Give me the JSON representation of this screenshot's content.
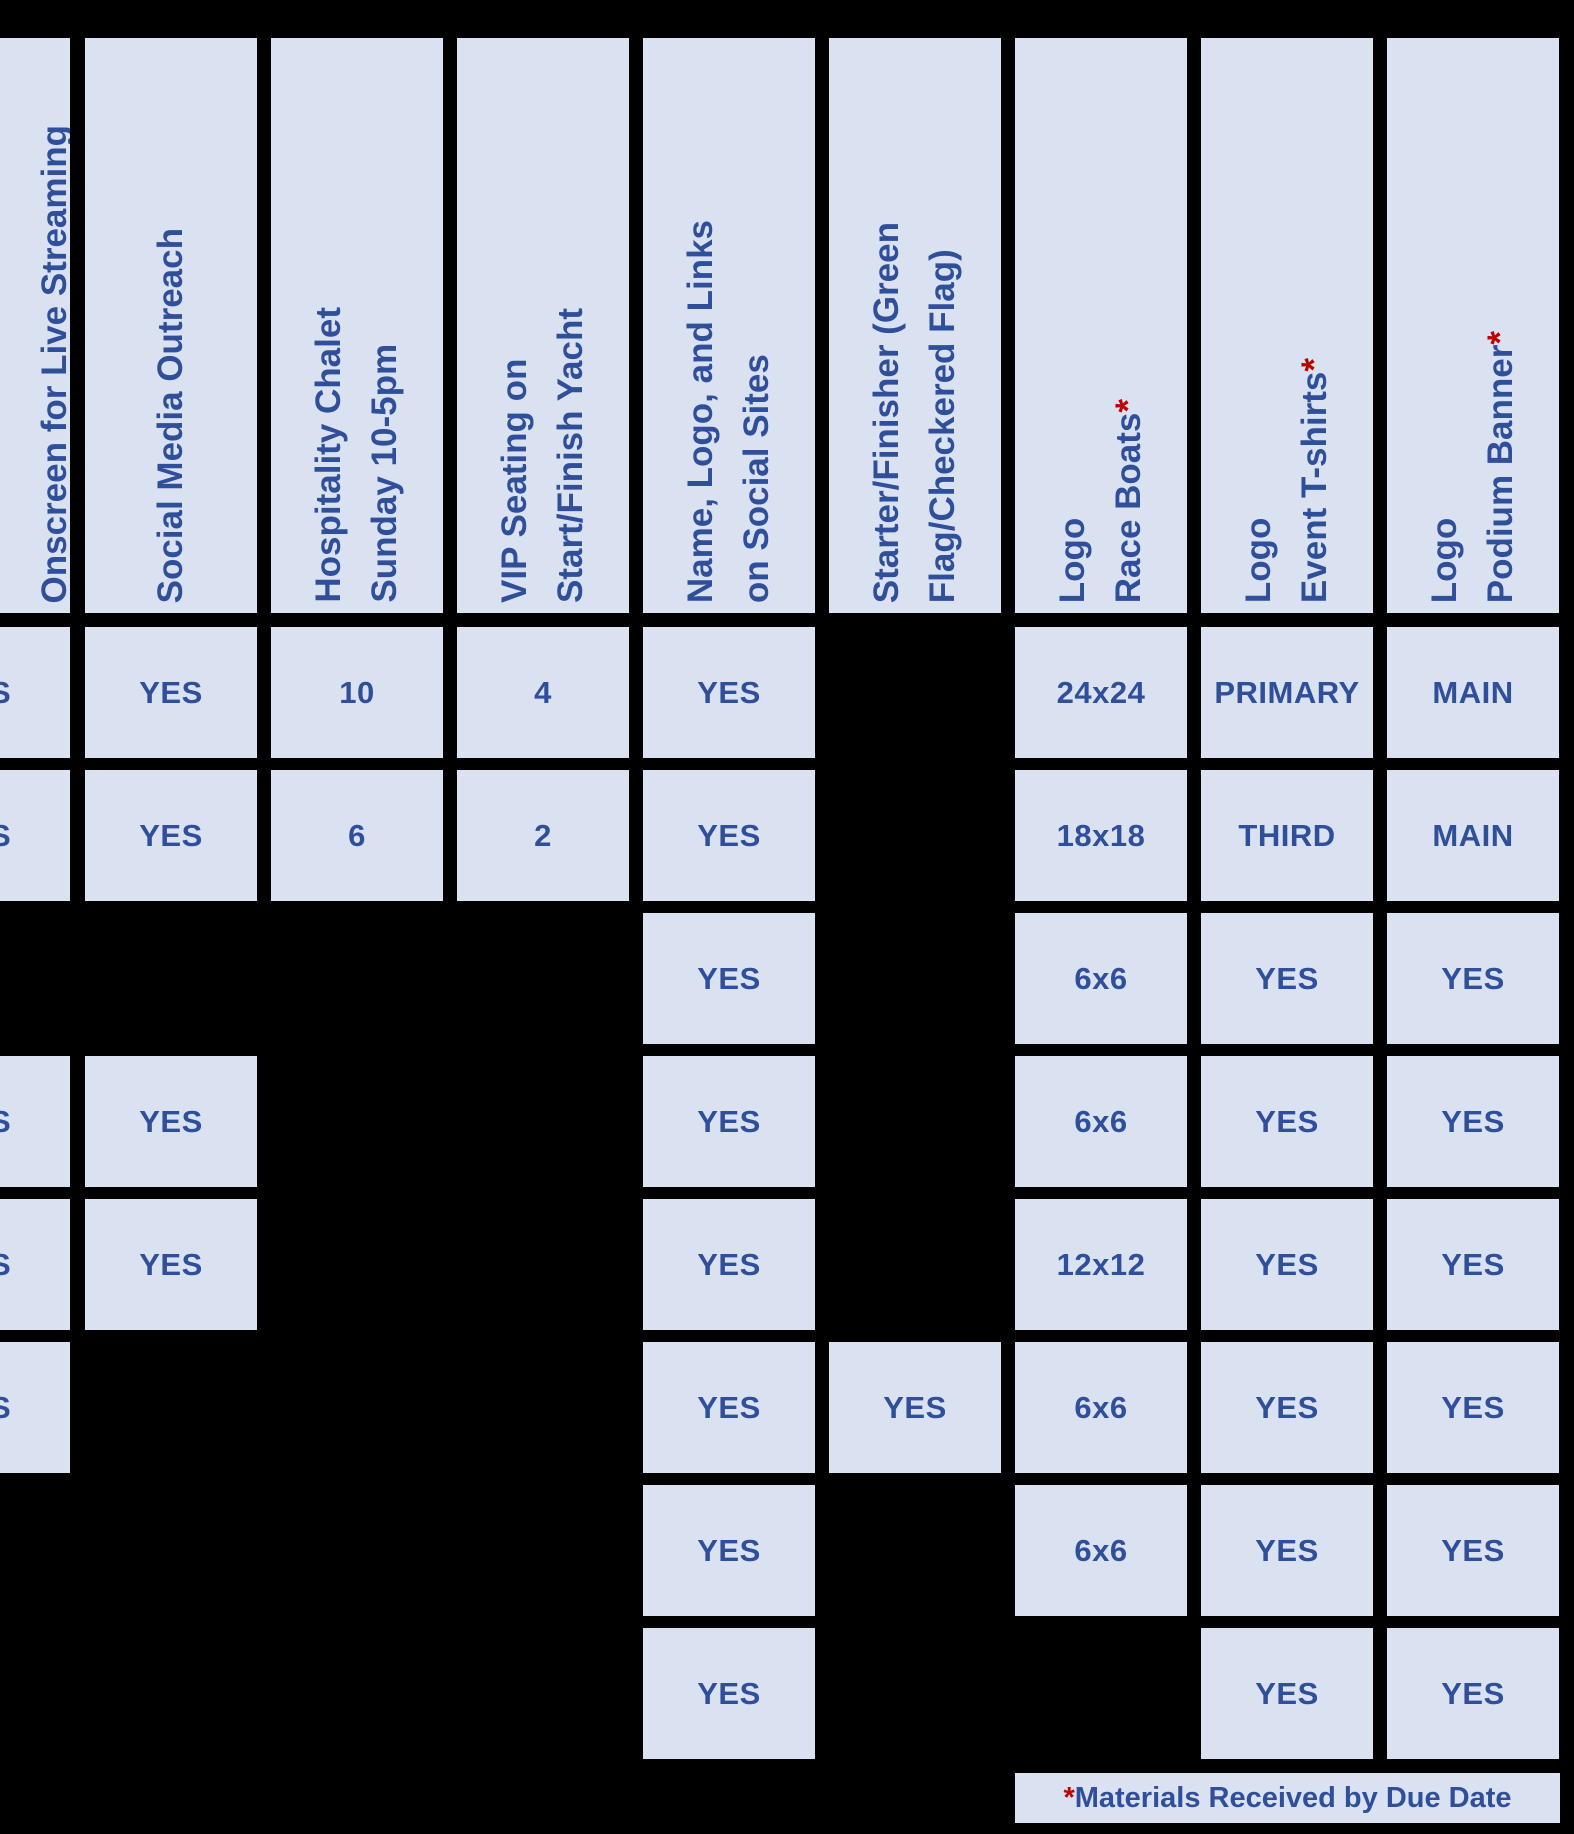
{
  "colors": {
    "background": "#000000",
    "cell_fill": "#dae1f1",
    "text": "#2f4f9a",
    "asterisk": "#c00000"
  },
  "headers": [
    {
      "lines": [
        "Onscreen for Live Streaming"
      ],
      "asterisk": false
    },
    {
      "lines": [
        "Social Media Outreach"
      ],
      "asterisk": false
    },
    {
      "lines": [
        "Hospitality Chalet",
        "Sunday 10-5pm"
      ],
      "asterisk": false
    },
    {
      "lines": [
        "VIP Seating on",
        "Start/Finish Yacht"
      ],
      "asterisk": false
    },
    {
      "lines": [
        "Name, Logo, and Links",
        "on Social Sites"
      ],
      "asterisk": false
    },
    {
      "lines": [
        "Starter/Finisher (Green",
        "Flag/Checkered Flag)"
      ],
      "asterisk": false
    },
    {
      "lines": [
        "Logo",
        "Race Boats"
      ],
      "asterisk": true
    },
    {
      "lines": [
        "Logo",
        "Event T-shirts"
      ],
      "asterisk": true
    },
    {
      "lines": [
        "Logo",
        "Podium Banner"
      ],
      "asterisk": true
    }
  ],
  "rows": [
    [
      "S",
      "YES",
      "10",
      "4",
      "YES",
      "",
      "24x24",
      "PRIMARY",
      "MAIN"
    ],
    [
      "S",
      "YES",
      "6",
      "2",
      "YES",
      "",
      "18x18",
      "THIRD",
      "MAIN"
    ],
    [
      "",
      "",
      "",
      "",
      "YES",
      "",
      "6x6",
      "YES",
      "YES"
    ],
    [
      "S",
      "YES",
      "",
      "",
      "YES",
      "",
      "6x6",
      "YES",
      "YES"
    ],
    [
      "S",
      "YES",
      "",
      "",
      "YES",
      "",
      "12x12",
      "YES",
      "YES"
    ],
    [
      "S",
      "",
      "",
      "",
      "YES",
      "YES",
      "6x6",
      "YES",
      "YES"
    ],
    [
      "",
      "",
      "",
      "",
      "YES",
      "",
      "6x6",
      "YES",
      "YES"
    ],
    [
      "",
      "",
      "",
      "",
      "YES",
      "",
      "",
      "YES",
      "YES"
    ]
  ],
  "footnote": {
    "asterisk": "*",
    "text": "Materials Received by Due Date"
  }
}
